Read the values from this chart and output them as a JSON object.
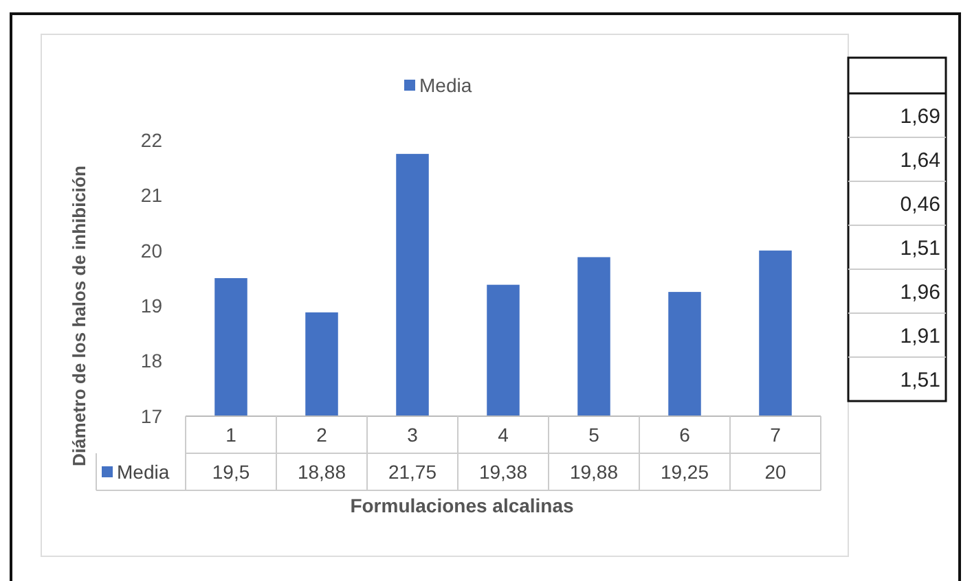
{
  "chart_data": {
    "type": "bar",
    "xlabel": "Formulaciones alcalinas",
    "ylabel": "Diámetro de los halos de inhibición",
    "categories": [
      "1",
      "2",
      "3",
      "4",
      "5",
      "6",
      "7"
    ],
    "series": [
      {
        "name": "Media",
        "color": "#4472c4",
        "values": [
          19.5,
          18.88,
          21.75,
          19.38,
          19.88,
          19.25,
          20
        ],
        "value_labels": [
          "19,5",
          "18,88",
          "21,75",
          "19,38",
          "19,88",
          "19,25",
          "20"
        ]
      }
    ],
    "ylim": [
      17,
      22
    ],
    "yticks": [
      17,
      18,
      19,
      20,
      21,
      22
    ],
    "grid": false,
    "legend": "top",
    "annotations": [
      "1,69",
      "1,64",
      "0,46",
      "1,51",
      "1,96",
      "1,91",
      "1,51"
    ]
  }
}
